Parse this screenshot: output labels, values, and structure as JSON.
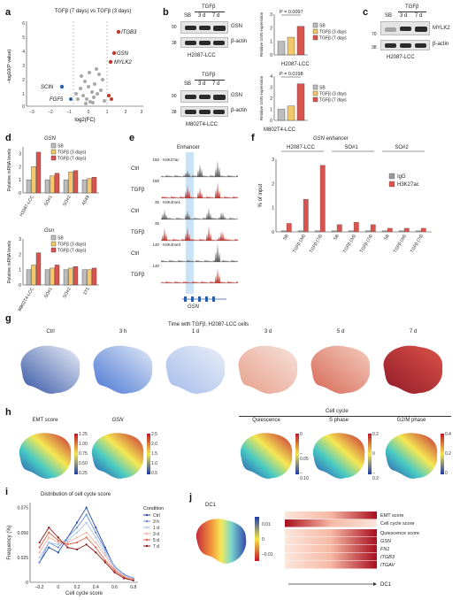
{
  "panels": [
    "a",
    "b",
    "c",
    "d",
    "e",
    "f",
    "g",
    "h",
    "i",
    "j"
  ],
  "a": {
    "title": "TGFβ (7 days) vs TGFβ (3 days)",
    "ylabel": "–log10(P value)",
    "xlabel": "log2(FC)",
    "xticks": [
      "–3",
      "–2",
      "–1",
      "0",
      "1",
      "2",
      "3"
    ],
    "yticks": [
      "0",
      "1",
      "2",
      "3",
      "4",
      "5",
      "6"
    ],
    "genes_up": [
      "ITGB3",
      "GSN",
      "MYLK2"
    ],
    "genes_down": [
      "SCIN",
      "FGF5"
    ],
    "colors": {
      "up": "#c0392b",
      "down": "#2c5ea8",
      "ns": "#888888"
    }
  },
  "b": {
    "tgfb_label": "TGFβ",
    "lanes": [
      "SB",
      "3 d",
      "7 d"
    ],
    "top_cell": "H2087-LCC",
    "bottom_cell": "M802T4-LCC",
    "mw_top": [
      "90",
      "38"
    ],
    "mw_bottom": [
      "90",
      "38"
    ],
    "protein_gsn": "GSN",
    "protein_actin": "β-actin",
    "chart_ylabel": "Relative GSN expression",
    "p_top": "P = 0.0097",
    "p_bottom": "P = 0.0198",
    "legend": [
      "SB",
      "TGFβ (3 days)",
      "TGFβ (7 days)"
    ],
    "top_yticks": [
      "0",
      "1",
      "2",
      "3"
    ],
    "bottom_yticks": [
      "0",
      "1",
      "2",
      "3",
      "4"
    ]
  },
  "c": {
    "tgfb_label": "TGFβ",
    "lanes": [
      "SB",
      "3 d",
      "7 d"
    ],
    "mw": [
      "70",
      "38"
    ],
    "protein_top": "MYLK2",
    "protein_bottom": "β-actin",
    "cell": "H2087-LCC"
  },
  "d": {
    "top_title": "GSN",
    "bottom_title": "Gsn",
    "ylabel": "Relative mRNA levels",
    "top_categories": [
      "H2087-LCC",
      "SO#1",
      "SO#2",
      "A549"
    ],
    "bottom_categories": [
      "M802T4-LCC",
      "SO#1",
      "SO#2",
      "3T3"
    ],
    "legend": [
      "SB",
      "TGFβ (3 days)",
      "TGFβ (7 days)"
    ],
    "top_yticks": [
      "0",
      "1",
      "2",
      "3"
    ],
    "bottom_yticks": [
      "0",
      "1",
      "2",
      "3"
    ]
  },
  "e": {
    "title": "Enhancer",
    "tracks": [
      {
        "cond": "Ctrl",
        "mark": "H3K27ac",
        "max": "150"
      },
      {
        "cond": "TGFβ",
        "mark": "",
        "max": "150"
      },
      {
        "cond": "Ctrl",
        "mark": "H3K4me1",
        "max": "35"
      },
      {
        "cond": "TGFβ",
        "mark": "",
        "max": "35"
      },
      {
        "cond": "Ctrl",
        "mark": "H3K4me3",
        "max": "140"
      },
      {
        "cond": "TGFβ",
        "mark": "",
        "max": "140"
      }
    ],
    "gene": "GSN"
  },
  "f": {
    "title": "GSN enhancer",
    "groups": [
      "H2087-LCC",
      "SO#1",
      "SO#2"
    ],
    "ylabel": "% of input",
    "legend": [
      "IgG",
      "H3K27ac"
    ],
    "yticks": [
      "0",
      "1",
      "2",
      "3"
    ]
  },
  "g": {
    "title": "Time with TGFβ, H2087-LCC cells",
    "timepoints": [
      "Ctrl",
      "3 h",
      "1 d",
      "3 d",
      "5 d",
      "7 d"
    ]
  },
  "h": {
    "left": [
      {
        "label": "EMT score",
        "ticks": [
          "1.25",
          "1.00",
          "0.75",
          "0.50",
          "0.25"
        ]
      },
      {
        "label": "GSN",
        "ticks": [
          "2.5",
          "2.0",
          "1.5",
          "1.0",
          "0.5"
        ]
      }
    ],
    "cell_cycle_title": "Cell cycle",
    "right": [
      {
        "label": "Quiescence",
        "ticks": [
          "0",
          "–0.05",
          "–0.10"
        ]
      },
      {
        "label": "S phase",
        "ticks": [
          "0.2",
          "0",
          "–0.2"
        ]
      },
      {
        "label": "G2/M phase",
        "ticks": [
          "0.4",
          "0.2",
          "0"
        ]
      }
    ]
  },
  "i": {
    "title": "Distribution of cell cycle score",
    "legend_title": "Condition",
    "xlabel": "Cell cycle score",
    "ylabel": "Frequency (%)"
  },
  "j": {
    "umap_label": "DC1",
    "cbar_ticks": [
      "0.01",
      "0",
      "–0.01"
    ],
    "rows": [
      "EMT score",
      "Cell cycle score",
      "Quiescence score",
      "GSN",
      "FN1",
      "ITGB3",
      "ITGAV"
    ],
    "rows_italic": [
      false,
      false,
      false,
      true,
      true,
      true,
      true
    ],
    "axis_label": "DC1"
  },
  "chart_data": [
    {
      "id": "b-top",
      "type": "bar",
      "categories": [
        "SB",
        "TGFβ (3 days)",
        "TGFβ (7 days)"
      ],
      "values": [
        1.0,
        1.3,
        2.1
      ],
      "ylabel": "Relative GSN expression",
      "ylim": [
        0,
        3
      ]
    },
    {
      "id": "b-bottom",
      "type": "bar",
      "categories": [
        "SB",
        "TGFβ (3 days)",
        "TGFβ (7 days)"
      ],
      "values": [
        1.0,
        1.3,
        3.3
      ],
      "ylabel": "Relative GSN expression",
      "ylim": [
        0,
        4
      ]
    },
    {
      "id": "d-top",
      "type": "bar",
      "categories": [
        "H2087-LCC",
        "SO#1",
        "SO#2",
        "A549"
      ],
      "series": [
        {
          "name": "SB",
          "values": [
            1.0,
            1.0,
            1.0,
            1.0
          ]
        },
        {
          "name": "TGFβ (3 days)",
          "values": [
            2.0,
            1.3,
            1.6,
            1.1
          ]
        },
        {
          "name": "TGFβ (7 days)",
          "values": [
            3.1,
            1.5,
            1.7,
            1.2
          ]
        }
      ],
      "ylabel": "Relative mRNA levels",
      "ylim": [
        0,
        3.5
      ]
    },
    {
      "id": "d-bottom",
      "type": "bar",
      "categories": [
        "M802T4-LCC",
        "SO#1",
        "SO#2",
        "3T3"
      ],
      "series": [
        {
          "name": "SB",
          "values": [
            1.0,
            1.0,
            1.0,
            1.0
          ]
        },
        {
          "name": "TGFβ (3 days)",
          "values": [
            1.3,
            1.1,
            1.1,
            1.0
          ]
        },
        {
          "name": "TGFβ (7 days)",
          "values": [
            2.1,
            1.3,
            1.2,
            1.1
          ]
        }
      ],
      "ylabel": "Relative mRNA levels",
      "ylim": [
        0,
        3
      ]
    },
    {
      "id": "f",
      "type": "bar",
      "categories": [
        "SB",
        "TGFβ (3d)",
        "TGFβ (7d)",
        "SB",
        "TGFβ (3d)",
        "TGFβ (7d)",
        "SB",
        "TGFβ (3d)",
        "TGFβ (7d)"
      ],
      "series": [
        {
          "name": "IgG",
          "values": [
            0.05,
            0.05,
            0.05,
            0.05,
            0.05,
            0.05,
            0.05,
            0.05,
            0.05
          ]
        },
        {
          "name": "H3K27ac",
          "values": [
            0.35,
            1.35,
            2.75,
            0.3,
            0.4,
            0.3,
            0.15,
            0.15,
            0.15
          ]
        }
      ],
      "ylabel": "% of input",
      "ylim": [
        0,
        3
      ]
    },
    {
      "id": "i",
      "type": "line",
      "x": [
        -0.2,
        -0.1,
        0.0,
        0.1,
        0.2,
        0.3,
        0.4,
        0.5,
        0.6,
        0.7,
        0.8
      ],
      "series": [
        {
          "name": "Ctrl",
          "values": [
            0.02,
            0.035,
            0.03,
            0.045,
            0.06,
            0.075,
            0.055,
            0.035,
            0.015,
            0.008,
            0.004
          ],
          "color": "#2b4da0"
        },
        {
          "name": "3 h",
          "values": [
            0.02,
            0.04,
            0.035,
            0.045,
            0.055,
            0.068,
            0.05,
            0.033,
            0.016,
            0.008,
            0.004
          ],
          "color": "#6a8fd6"
        },
        {
          "name": "1 d",
          "values": [
            0.025,
            0.04,
            0.038,
            0.042,
            0.05,
            0.06,
            0.045,
            0.03,
            0.015,
            0.007,
            0.003
          ],
          "color": "#aac4f0"
        },
        {
          "name": "3 d",
          "values": [
            0.03,
            0.045,
            0.04,
            0.04,
            0.045,
            0.05,
            0.04,
            0.027,
            0.013,
            0.006,
            0.003
          ],
          "color": "#f0b0a0"
        },
        {
          "name": "5 d",
          "values": [
            0.035,
            0.05,
            0.042,
            0.038,
            0.04,
            0.045,
            0.035,
            0.022,
            0.012,
            0.005,
            0.002
          ],
          "color": "#e0604a"
        },
        {
          "name": "7 d",
          "values": [
            0.04,
            0.055,
            0.045,
            0.035,
            0.033,
            0.038,
            0.03,
            0.02,
            0.01,
            0.004,
            0.002
          ],
          "color": "#8b1a1a"
        }
      ],
      "xlabel": "Cell cycle score",
      "ylabel": "Frequency (%)",
      "xlim": [
        -0.3,
        0.85
      ],
      "ylim": [
        0,
        0.08
      ],
      "xticks": [
        "–0.2",
        "0",
        "0.2",
        "0.4",
        "0.6",
        "0.8"
      ],
      "yticks": [
        "0",
        "0.025",
        "0.050",
        "0.075"
      ]
    }
  ]
}
